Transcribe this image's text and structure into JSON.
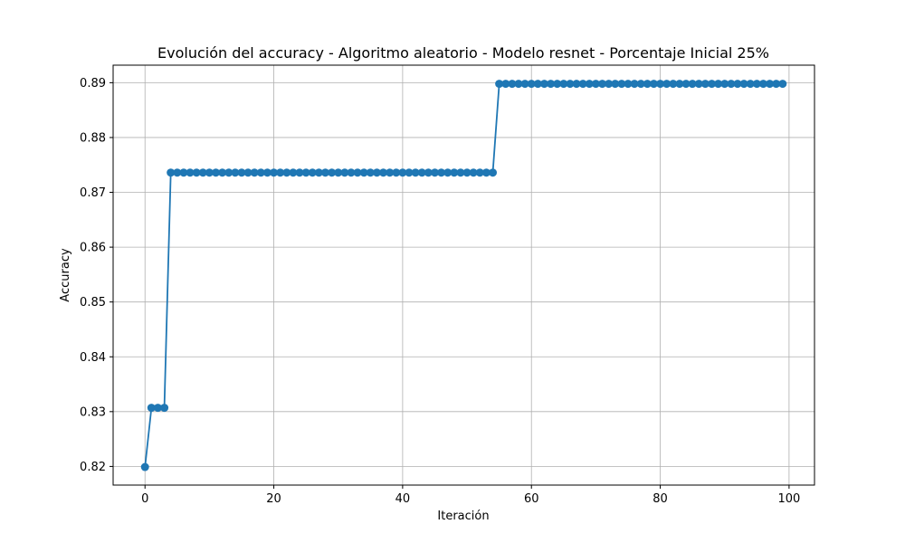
{
  "chart_data": {
    "type": "line",
    "title": "Evolución del accuracy - Algoritmo aleatorio - Modelo resnet - Porcentaje Inicial 25%",
    "xlabel": "Iteración",
    "ylabel": "Accuracy",
    "xlim": [
      -4.95,
      103.95
    ],
    "ylim": [
      0.8166,
      0.8932
    ],
    "xticks": [
      0,
      20,
      40,
      60,
      80,
      100
    ],
    "yticks": [
      0.82,
      0.83,
      0.84,
      0.85,
      0.86,
      0.87,
      0.88,
      0.89
    ],
    "grid": true,
    "marker": "circle",
    "series": [
      {
        "color": "#1f77b4",
        "segments": [
          {
            "x_start": 0,
            "x_end": 0,
            "y": 0.8199
          },
          {
            "x_start": 1,
            "x_end": 3,
            "y": 0.8307
          },
          {
            "x_start": 4,
            "x_end": 54,
            "y": 0.8736
          },
          {
            "x_start": 55,
            "x_end": 99,
            "y": 0.8898
          }
        ]
      }
    ]
  }
}
